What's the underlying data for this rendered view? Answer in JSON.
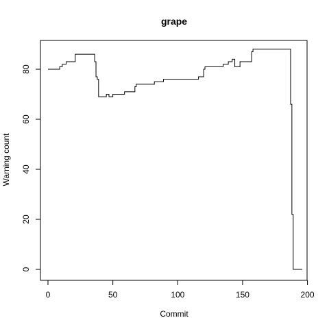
{
  "chart_data": {
    "type": "line",
    "title": "grape",
    "xlabel": "Commit",
    "ylabel": "Warning count",
    "xlim": [
      0,
      200
    ],
    "ylim": [
      0,
      90
    ],
    "x_ticks": [
      0,
      50,
      100,
      150,
      200
    ],
    "y_ticks": [
      0,
      20,
      40,
      60,
      80
    ],
    "grid": false,
    "line_color": "#000000",
    "series": [
      {
        "x": [
          0,
          8,
          9,
          10,
          11,
          12,
          14,
          20,
          21,
          35,
          36,
          37,
          38,
          39,
          40,
          44,
          45,
          46,
          47,
          48,
          50,
          53,
          58,
          59,
          66,
          67,
          68,
          80,
          81,
          82,
          88,
          89,
          90,
          115,
          116,
          117,
          119,
          120,
          121,
          122,
          123,
          133,
          134,
          135,
          138,
          139,
          140,
          141,
          142,
          143,
          144,
          145,
          146,
          147,
          148,
          149,
          150,
          156,
          157,
          158,
          159,
          160,
          161,
          186,
          187,
          188,
          189,
          190,
          194,
          196
        ],
        "y": [
          80,
          80,
          81,
          81,
          82,
          82,
          83,
          83,
          86,
          86,
          83,
          77,
          76,
          69,
          69,
          69,
          70,
          70,
          69,
          69,
          70,
          70,
          70,
          71,
          71,
          73,
          74,
          74,
          74,
          75,
          75,
          76,
          76,
          76,
          77,
          77,
          77,
          80,
          81,
          81,
          81,
          81,
          81,
          82,
          82,
          83,
          83,
          83,
          84,
          84,
          81,
          81,
          81,
          81,
          83,
          83,
          83,
          83,
          87,
          88,
          88,
          88,
          88,
          88,
          66,
          22,
          0,
          0,
          0,
          0
        ]
      }
    ]
  }
}
